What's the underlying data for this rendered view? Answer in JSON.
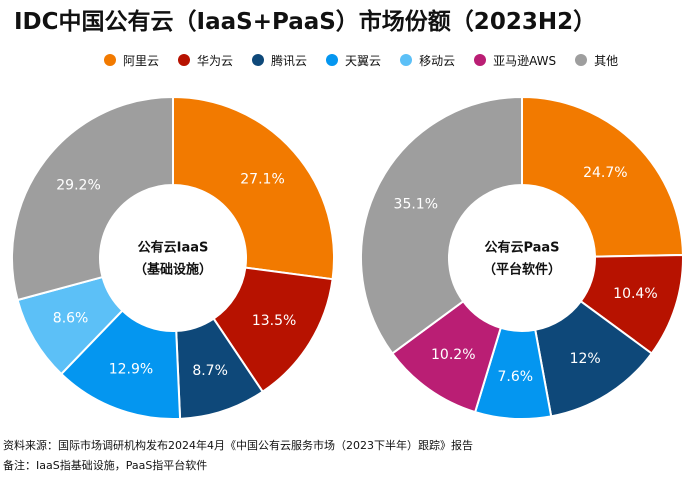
{
  "title": "IDC中国公有云（IaaS+PaaS）市场份额（2023H2）",
  "colors": {
    "阿里云": "#F27A00",
    "华为云": "#B71200",
    "腾讯云": "#0E4879",
    "天翼云": "#0496F0",
    "移动云": "#5CC0F7",
    "亚马逊AWS": "#BA1E74",
    "其他": "#9E9E9E"
  },
  "legend": [
    {
      "label": "阿里云",
      "color": "#F27A00"
    },
    {
      "label": "华为云",
      "color": "#B71200"
    },
    {
      "label": "腾讯云",
      "color": "#0E4879"
    },
    {
      "label": "天翼云",
      "color": "#0496F0"
    },
    {
      "label": "移动云",
      "color": "#5CC0F7"
    },
    {
      "label": "亚马逊AWS",
      "color": "#BA1E74"
    },
    {
      "label": "其他",
      "color": "#9E9E9E"
    }
  ],
  "chart_data": [
    {
      "type": "pie",
      "variant": "donut",
      "center_label": [
        "公有云IaaS",
        "（基础设施）"
      ],
      "slices": [
        {
          "name": "阿里云",
          "value": 27.1,
          "label": "27.1%"
        },
        {
          "name": "华为云",
          "value": 13.5,
          "label": "13.5%"
        },
        {
          "name": "腾讯云",
          "value": 8.7,
          "label": "8.7%"
        },
        {
          "name": "天翼云",
          "value": 12.9,
          "label": "12.9%"
        },
        {
          "name": "移动云",
          "value": 8.6,
          "label": "8.6%"
        },
        {
          "name": "其他",
          "value": 29.2,
          "label": "29.2%"
        }
      ]
    },
    {
      "type": "pie",
      "variant": "donut",
      "center_label": [
        "公有云PaaS",
        "（平台软件）"
      ],
      "slices": [
        {
          "name": "阿里云",
          "value": 24.7,
          "label": "24.7%"
        },
        {
          "name": "华为云",
          "value": 10.4,
          "label": "10.4%"
        },
        {
          "name": "腾讯云",
          "value": 12,
          "label": "12%"
        },
        {
          "name": "天翼云",
          "value": 7.6,
          "label": "7.6%"
        },
        {
          "name": "亚马逊AWS",
          "value": 10.2,
          "label": "10.2%"
        },
        {
          "name": "其他",
          "value": 35.1,
          "label": "35.1%"
        }
      ]
    }
  ],
  "footer": {
    "source": "资料来源：国际市场调研机构发布2024年4月《中国公有云服务市场（2023下半年）跟踪》报告",
    "note": "备注：IaaS指基础设施，PaaS指平台软件"
  }
}
